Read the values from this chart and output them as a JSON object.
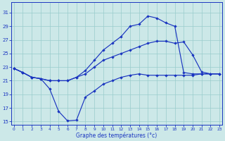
{
  "xlabel": "Graphe des températures (°c)",
  "bg_color": "#cce8e8",
  "line_color": "#1a35c0",
  "grid_color": "#99cccc",
  "xlim": [
    -0.3,
    23.3
  ],
  "ylim": [
    14.5,
    32.5
  ],
  "xticks": [
    0,
    1,
    2,
    3,
    4,
    5,
    6,
    7,
    8,
    9,
    10,
    11,
    12,
    13,
    14,
    15,
    16,
    17,
    18,
    19,
    20,
    21,
    22,
    23
  ],
  "yticks": [
    15,
    17,
    19,
    21,
    23,
    25,
    27,
    29,
    31
  ],
  "line_min": {
    "x": [
      0,
      1,
      2,
      3,
      4,
      5,
      6,
      7,
      8,
      9,
      10,
      11,
      12,
      13,
      14,
      15,
      16,
      17,
      18,
      19,
      20,
      21,
      22,
      23
    ],
    "y": [
      22.8,
      22.2,
      21.5,
      21.3,
      19.8,
      16.5,
      15.1,
      15.2,
      18.6,
      19.5,
      20.5,
      21.0,
      21.5,
      21.8,
      22.0,
      21.8,
      21.8,
      21.8,
      21.8,
      21.8,
      21.8,
      22.0,
      22.0,
      22.0
    ]
  },
  "line_max": {
    "x": [
      0,
      1,
      2,
      3,
      4,
      5,
      6,
      7,
      8,
      9,
      10,
      11,
      12,
      13,
      14,
      15,
      16,
      17,
      18,
      19,
      20,
      21,
      22,
      23
    ],
    "y": [
      22.8,
      22.2,
      21.5,
      21.3,
      21.0,
      21.0,
      21.0,
      21.5,
      22.5,
      24.0,
      25.5,
      26.5,
      27.5,
      29.0,
      29.3,
      30.5,
      30.2,
      29.5,
      29.0,
      22.2,
      22.0,
      22.0,
      22.0,
      22.0
    ]
  },
  "line_mid": {
    "x": [
      0,
      1,
      2,
      3,
      4,
      5,
      6,
      7,
      8,
      9,
      10,
      11,
      12,
      13,
      14,
      15,
      16,
      17,
      18,
      19,
      20,
      21,
      22,
      23
    ],
    "y": [
      22.8,
      22.2,
      21.5,
      21.3,
      21.0,
      21.0,
      21.0,
      21.5,
      22.0,
      23.0,
      24.0,
      24.5,
      25.0,
      25.5,
      26.0,
      26.5,
      26.8,
      26.8,
      26.5,
      26.7,
      24.8,
      22.3,
      22.0,
      22.0
    ]
  }
}
